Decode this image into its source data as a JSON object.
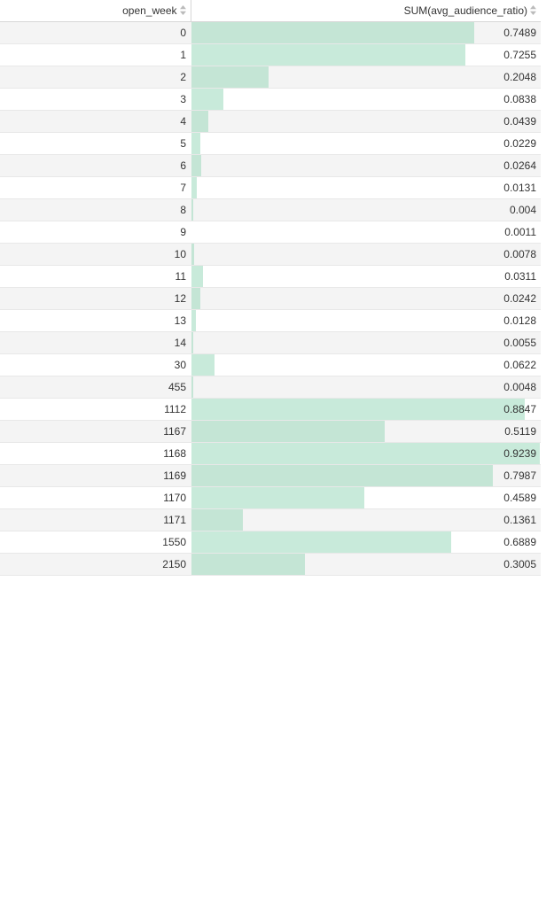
{
  "table": {
    "columns": [
      {
        "label": "open_week",
        "sort_icon": "sort-both-icon"
      },
      {
        "label": "SUM(avg_audience_ratio)",
        "sort_icon": "sort-both-icon"
      }
    ],
    "bar_color": "#c8eada",
    "bar_max_value": 0.9239,
    "rows": [
      {
        "open_week": "0",
        "value": "0.7489"
      },
      {
        "open_week": "1",
        "value": "0.7255"
      },
      {
        "open_week": "2",
        "value": "0.2048"
      },
      {
        "open_week": "3",
        "value": "0.0838"
      },
      {
        "open_week": "4",
        "value": "0.0439"
      },
      {
        "open_week": "5",
        "value": "0.0229"
      },
      {
        "open_week": "6",
        "value": "0.0264"
      },
      {
        "open_week": "7",
        "value": "0.0131"
      },
      {
        "open_week": "8",
        "value": "0.004"
      },
      {
        "open_week": "9",
        "value": "0.0011"
      },
      {
        "open_week": "10",
        "value": "0.0078"
      },
      {
        "open_week": "11",
        "value": "0.0311"
      },
      {
        "open_week": "12",
        "value": "0.0242"
      },
      {
        "open_week": "13",
        "value": "0.0128"
      },
      {
        "open_week": "14",
        "value": "0.0055"
      },
      {
        "open_week": "30",
        "value": "0.0622"
      },
      {
        "open_week": "455",
        "value": "0.0048"
      },
      {
        "open_week": "1112",
        "value": "0.8847"
      },
      {
        "open_week": "1167",
        "value": "0.5119"
      },
      {
        "open_week": "1168",
        "value": "0.9239"
      },
      {
        "open_week": "1169",
        "value": "0.7987"
      },
      {
        "open_week": "1170",
        "value": "0.4589"
      },
      {
        "open_week": "1171",
        "value": "0.1361"
      },
      {
        "open_week": "1550",
        "value": "0.6889"
      },
      {
        "open_week": "2150",
        "value": "0.3005"
      }
    ]
  }
}
